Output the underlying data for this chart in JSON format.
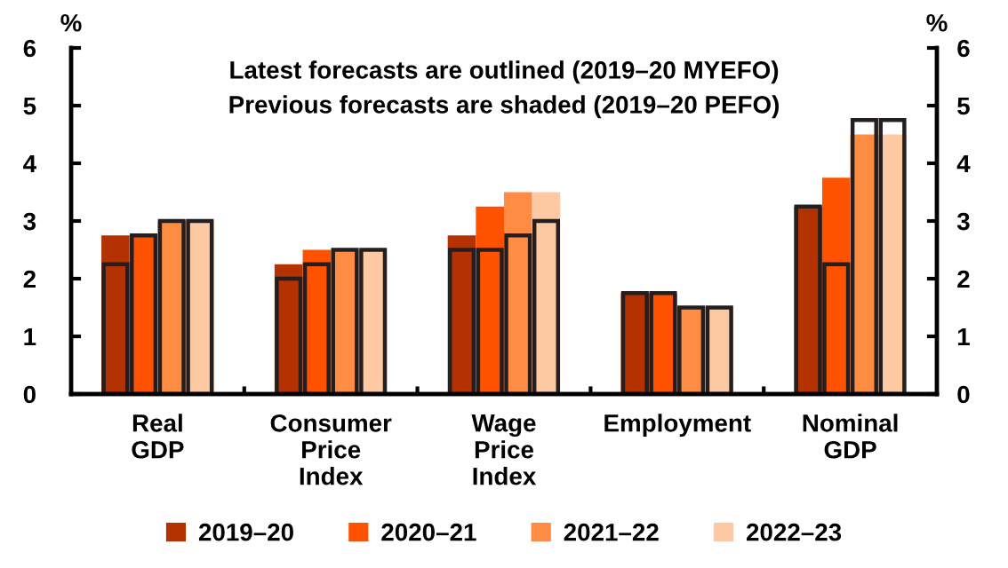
{
  "chart_data": {
    "type": "bar",
    "title": "Latest forecasts are outlined (2019–20 MYEFO)",
    "subtitle": "Previous forecasts are shaded (2019–20 PEFO)",
    "categories": [
      "Real\nGDP",
      "Consumer\nPrice\nIndex",
      "Wage\nPrice\nIndex",
      "Employment",
      "Nominal\nGDP"
    ],
    "series": [
      {
        "name": "2019–20",
        "color": "#b33200",
        "values": [
          2.75,
          2.25,
          2.75,
          1.75,
          3.25
        ]
      },
      {
        "name": "2020–21",
        "color": "#ff5200",
        "values": [
          2.75,
          2.5,
          3.25,
          1.75,
          3.75
        ]
      },
      {
        "name": "2021–22",
        "color": "#ff8c42",
        "values": [
          3.0,
          2.5,
          3.5,
          1.5,
          4.5
        ]
      },
      {
        "name": "2022–23",
        "color": "#fdc9a2",
        "values": [
          3.0,
          2.5,
          3.5,
          1.5,
          4.5
        ]
      },
      {
        "color": "#231f20",
        "values": [
          2.25,
          2.0,
          2.5,
          1.75,
          3.25
        ]
      },
      {
        "color": "#231f20",
        "values": [
          2.75,
          2.25,
          2.5,
          1.75,
          2.25
        ]
      },
      {
        "color": "#231f20",
        "values": [
          3.0,
          2.5,
          2.75,
          1.5,
          4.75
        ]
      },
      {
        "color": "#231f20",
        "values": [
          3.0,
          2.5,
          3.0,
          1.5,
          4.75
        ]
      }
    ],
    "ylabel": "%",
    "y2label": "%",
    "ylim": [
      0,
      6
    ],
    "yticks": [
      0,
      1,
      2,
      3,
      4,
      5,
      6
    ],
    "y2lim": [
      0,
      6
    ],
    "y2ticks": [
      0,
      1,
      2,
      3,
      4,
      5,
      6
    ],
    "grid": false,
    "legend": "bottom"
  }
}
